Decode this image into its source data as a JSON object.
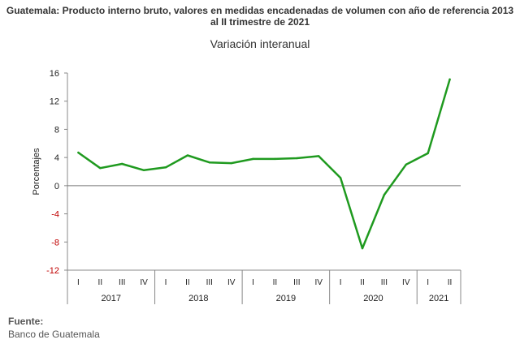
{
  "title_line1": "Guatemala: Producto interno bruto, valores en medidas encadenadas de volumen con año de referencia 2013",
  "title_line2": "al II trimestre de 2021",
  "source_label": "Fuente:",
  "source_text": "Banco de Guatemala",
  "chart_data": {
    "type": "line",
    "title": "Guatemala: Producto interno bruto, valores en medidas encadenadas de volumen con año de referencia 2013 al II trimestre de 2021",
    "subtitle": "Variación interanual",
    "ylabel": "Porcentajes",
    "xlabel": "",
    "ylim": [
      -12,
      16
    ],
    "yticks": [
      16,
      12,
      8,
      4,
      0,
      -4,
      -8,
      -12
    ],
    "grid": false,
    "legend": "none",
    "line_color": "#1f9a1f",
    "quarters": [
      "I",
      "II",
      "III",
      "IV",
      "I",
      "II",
      "III",
      "IV",
      "I",
      "II",
      "III",
      "IV",
      "I",
      "II",
      "III",
      "IV",
      "I",
      "II"
    ],
    "years": [
      {
        "label": "2017",
        "quarters": 4
      },
      {
        "label": "2018",
        "quarters": 4
      },
      {
        "label": "2019",
        "quarters": 4
      },
      {
        "label": "2020",
        "quarters": 4
      },
      {
        "label": "2021",
        "quarters": 2
      }
    ],
    "series": [
      {
        "values": [
          4.7,
          2.5,
          3.1,
          2.2,
          2.6,
          4.3,
          3.3,
          3.2,
          3.8,
          3.8,
          3.9,
          4.2,
          1.1,
          -8.9,
          -1.3,
          3.0,
          4.6,
          15.1
        ]
      }
    ]
  }
}
